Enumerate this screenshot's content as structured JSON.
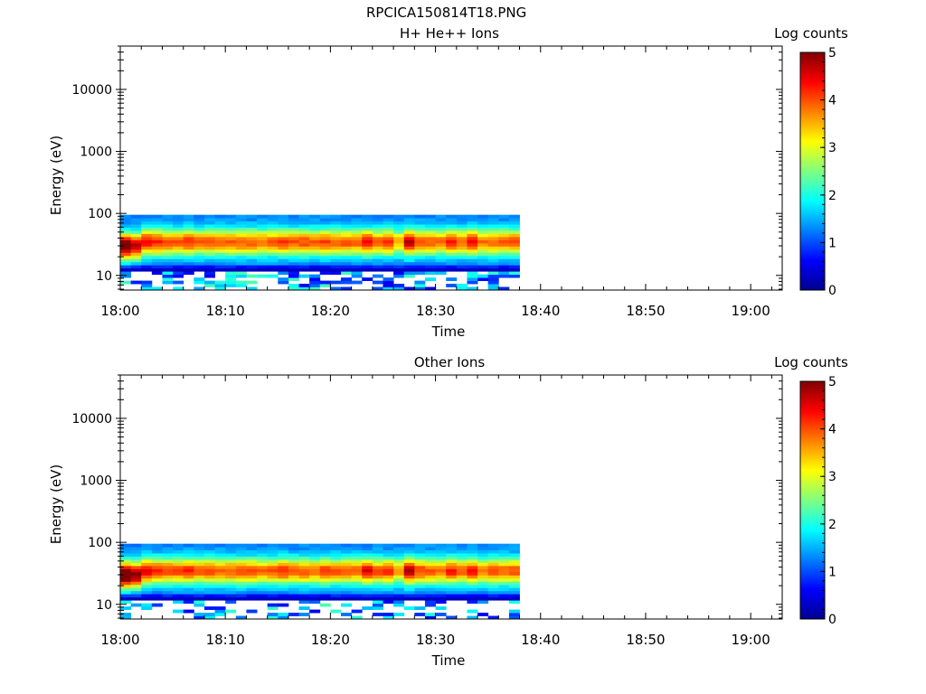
{
  "figure": {
    "title": "RPCICA150814T18.PNG"
  },
  "chart_data": [
    {
      "type": "heatmap",
      "title": "H+ He++ Ions",
      "xlabel": "Time",
      "ylabel": "Energy (eV)",
      "x_ticks": [
        "18:00",
        "18:10",
        "18:20",
        "18:30",
        "18:40",
        "18:50",
        "19:00"
      ],
      "y_ticks": [
        "10",
        "100",
        "1000",
        "10000"
      ],
      "y_scale": "log",
      "ylim": [
        5.8,
        50000
      ],
      "x_start": "18:00",
      "x_end": "19:03",
      "data_end": "18:38",
      "energy_max": 95,
      "colorbar": {
        "label": "Log counts",
        "ticks": [
          "0",
          "1",
          "2",
          "3",
          "4",
          "5"
        ],
        "range": [
          0,
          5
        ]
      },
      "time_columns": 38,
      "energy_rows": 24,
      "column_intensity": [
        1.35,
        1.15,
        1.05,
        1.0,
        0.95,
        0.9,
        0.98,
        0.9,
        0.92,
        0.88,
        0.9,
        0.92,
        0.9,
        0.88,
        0.9,
        0.95,
        0.9,
        0.92,
        0.88,
        0.95,
        0.9,
        0.92,
        0.88,
        1.05,
        0.9,
        0.98,
        0.75,
        1.15,
        0.95,
        0.9,
        0.88,
        1.0,
        0.9,
        1.02,
        0.85,
        0.9,
        0.88,
        0.92
      ]
    },
    {
      "type": "heatmap",
      "title": "Other Ions",
      "xlabel": "Time",
      "ylabel": "Energy (eV)",
      "x_ticks": [
        "18:00",
        "18:10",
        "18:20",
        "18:30",
        "18:40",
        "18:50",
        "19:00"
      ],
      "y_ticks": [
        "10",
        "100",
        "1000",
        "10000"
      ],
      "y_scale": "log",
      "ylim": [
        5.8,
        50000
      ],
      "x_start": "18:00",
      "x_end": "19:03",
      "data_end": "18:38",
      "energy_max": 95,
      "colorbar": {
        "label": "Log counts",
        "ticks": [
          "0",
          "1",
          "2",
          "3",
          "4",
          "5"
        ],
        "range": [
          0,
          5
        ]
      },
      "time_columns": 38,
      "energy_rows": 24,
      "column_intensity": [
        1.45,
        1.25,
        1.08,
        1.0,
        0.95,
        0.92,
        0.98,
        0.9,
        0.94,
        0.88,
        0.9,
        0.95,
        0.9,
        0.88,
        0.92,
        0.98,
        0.9,
        0.92,
        0.88,
        0.95,
        0.9,
        0.92,
        0.88,
        1.08,
        0.92,
        0.98,
        0.78,
        1.15,
        0.95,
        0.9,
        0.88,
        1.0,
        0.9,
        1.02,
        0.85,
        0.9,
        0.88,
        0.92
      ]
    }
  ]
}
